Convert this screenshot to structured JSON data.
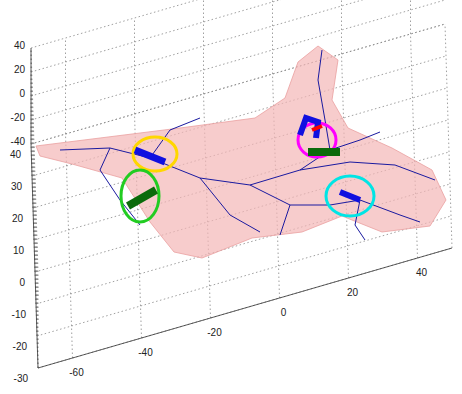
{
  "chart_data": {
    "type": "3d",
    "xlim": [
      -70,
      50
    ],
    "ylim": [
      -30,
      40
    ],
    "zlim": [
      -40,
      40
    ],
    "xticks": [
      -60,
      -40,
      -20,
      0,
      20,
      40
    ],
    "yticks": [
      -30,
      -20,
      -10,
      0,
      10,
      20,
      30,
      40
    ],
    "zticks": [
      -40,
      -20,
      0,
      20,
      40
    ],
    "grid": true
  }
}
